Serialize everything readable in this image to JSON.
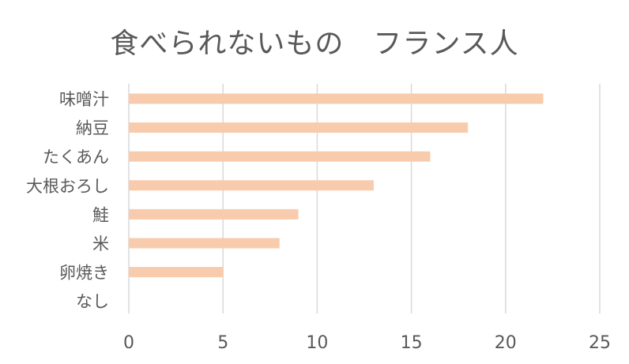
{
  "chart_data": {
    "type": "bar",
    "orientation": "horizontal",
    "title": "食べられないもの　フランス人",
    "xlabel": "",
    "ylabel": "",
    "categories": [
      "味噌汁",
      "納豆",
      "たくあん",
      "大根おろし",
      "鮭",
      "米",
      "卵焼き",
      "なし"
    ],
    "values": [
      22,
      18,
      16,
      13,
      9,
      8,
      5,
      0
    ],
    "xlim": [
      0,
      25
    ],
    "xticks": [
      0,
      5,
      10,
      15,
      20,
      25
    ],
    "grid": "vertical",
    "legend": "none",
    "colors": {
      "bar": "#f8cbad",
      "grid": "#d9d9d9",
      "text": "#595959"
    }
  }
}
